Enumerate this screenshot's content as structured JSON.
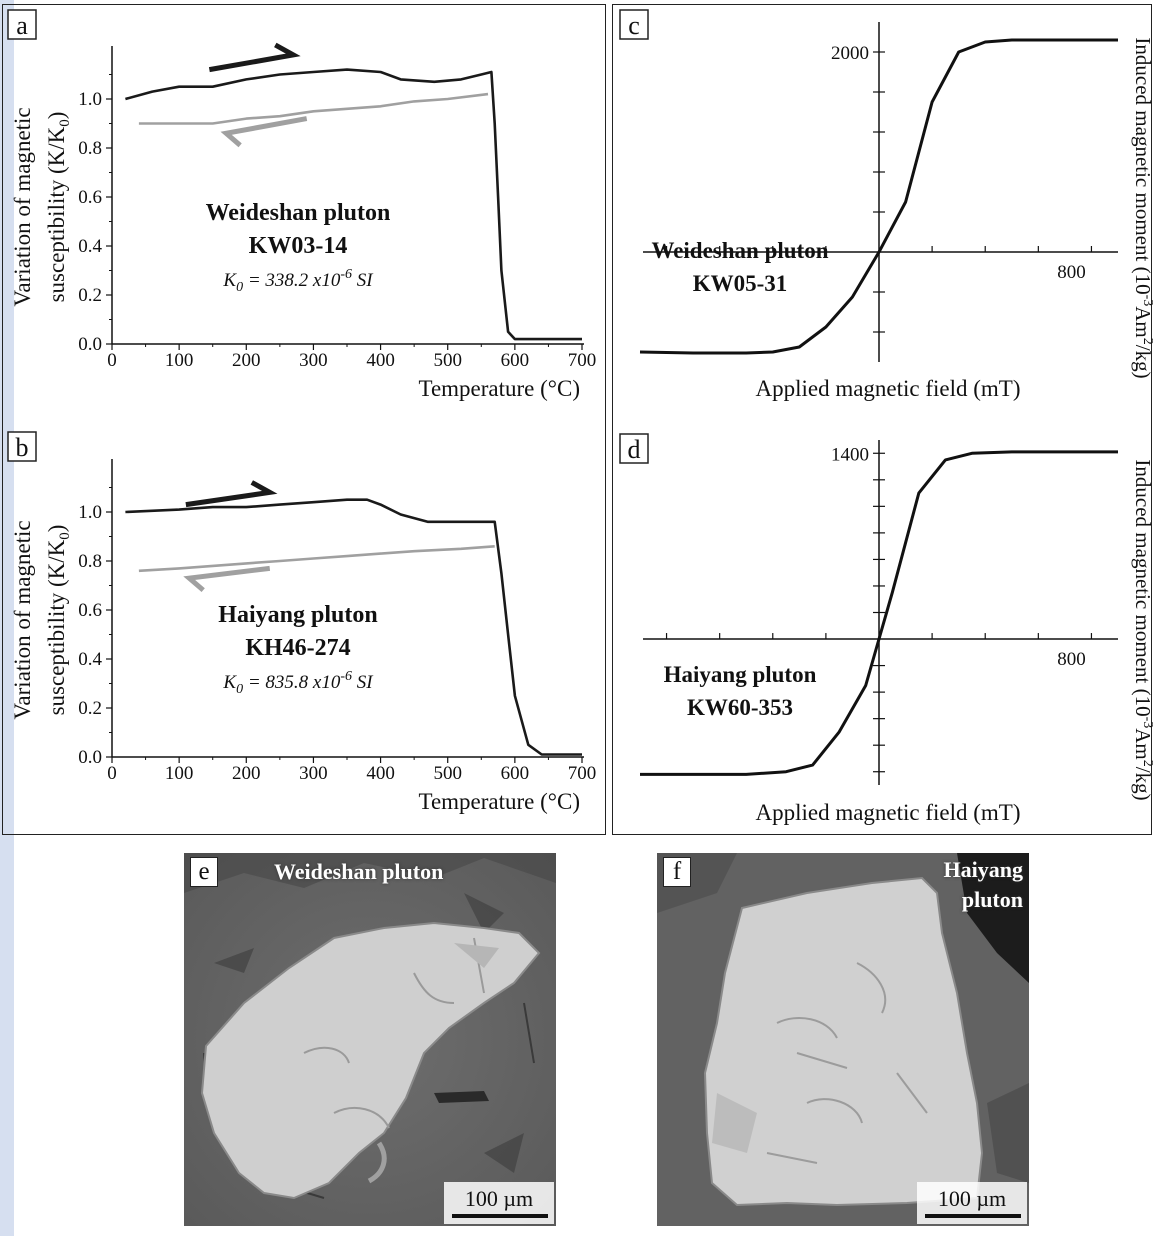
{
  "panels": {
    "a": {
      "letter": "a",
      "title": "Weideshan pluton",
      "sample": "KW03-14",
      "k0": "338.2 x10",
      "k0_exp": "-6",
      "k0_unit": " SI",
      "ylabel1": "Variation of magnetic",
      "ylabel2": "susceptibility (K/K",
      "ylabel_sub": "0",
      "xlabel": "Temperature (°C)"
    },
    "b": {
      "letter": "b",
      "title": "Haiyang pluton",
      "sample": "KH46-274",
      "k0": "835.8 x10",
      "k0_exp": "-6",
      "k0_unit": " SI",
      "ylabel1": "Variation of magnetic",
      "ylabel2": "susceptibility (K/K",
      "ylabel_sub": "0",
      "xlabel": "Temperature (°C)"
    },
    "c": {
      "letter": "c",
      "title": "Weideshan pluton",
      "sample": "KW05-31",
      "xlabel": "Applied magnetic field (mT)",
      "ylabel": "Induced magnetic moment (10",
      "ylabel_exp1": "-3",
      "ylabel_mid": "Am",
      "ylabel_exp2": "2",
      "ylabel_end": "/kg)"
    },
    "d": {
      "letter": "d",
      "title": "Haiyang pluton",
      "sample": "KW60-353",
      "xlabel": "Applied magnetic field (mT)",
      "ylabel": "Induced magnetic moment (10",
      "ylabel_exp1": "-3",
      "ylabel_mid": "Am",
      "ylabel_exp2": "2",
      "ylabel_end": "/kg)"
    },
    "e": {
      "letter": "e",
      "title": "Weideshan pluton",
      "scale": "100 µm"
    },
    "f": {
      "letter": "f",
      "title1": "Haiyang",
      "title2": "pluton",
      "scale": "100 µm"
    }
  },
  "chart_data": [
    {
      "panel": "a",
      "type": "line",
      "xlim": [
        0,
        700
      ],
      "ylim": [
        0,
        1.2
      ],
      "x_ticks": [
        0,
        100,
        200,
        300,
        400,
        500,
        600,
        700
      ],
      "y_ticks": [
        0.0,
        0.2,
        0.4,
        0.6,
        0.8,
        1.0
      ],
      "series": [
        {
          "role": "heating",
          "color": "#1a1a1a",
          "x": [
            20,
            60,
            100,
            150,
            200,
            250,
            300,
            350,
            400,
            430,
            480,
            520,
            550,
            565,
            570,
            575,
            580,
            590,
            600,
            650,
            700
          ],
          "y": [
            1.0,
            1.03,
            1.05,
            1.05,
            1.08,
            1.1,
            1.11,
            1.12,
            1.11,
            1.08,
            1.07,
            1.08,
            1.1,
            1.11,
            0.9,
            0.6,
            0.3,
            0.05,
            0.02,
            0.02,
            0.02
          ]
        },
        {
          "role": "cooling",
          "color": "#a0a0a0",
          "x": [
            560,
            500,
            450,
            400,
            350,
            300,
            250,
            200,
            150,
            100,
            40
          ],
          "y": [
            1.02,
            1.0,
            0.99,
            0.97,
            0.96,
            0.95,
            0.93,
            0.92,
            0.9,
            0.9,
            0.9
          ]
        }
      ]
    },
    {
      "panel": "b",
      "type": "line",
      "xlim": [
        0,
        700
      ],
      "ylim": [
        0,
        1.2
      ],
      "x_ticks": [
        0,
        100,
        200,
        300,
        400,
        500,
        600,
        700
      ],
      "y_ticks": [
        0.0,
        0.2,
        0.4,
        0.6,
        0.8,
        1.0
      ],
      "series": [
        {
          "role": "heating",
          "color": "#1a1a1a",
          "x": [
            20,
            100,
            150,
            200,
            250,
            300,
            350,
            380,
            400,
            430,
            470,
            520,
            560,
            570,
            580,
            590,
            600,
            620,
            640,
            700
          ],
          "y": [
            1.0,
            1.01,
            1.02,
            1.02,
            1.03,
            1.04,
            1.05,
            1.05,
            1.03,
            0.99,
            0.96,
            0.96,
            0.96,
            0.96,
            0.75,
            0.5,
            0.25,
            0.05,
            0.01,
            0.01
          ]
        },
        {
          "role": "cooling",
          "color": "#a0a0a0",
          "x": [
            570,
            520,
            450,
            400,
            350,
            300,
            250,
            200,
            150,
            100,
            40
          ],
          "y": [
            0.86,
            0.85,
            0.84,
            0.83,
            0.82,
            0.81,
            0.8,
            0.79,
            0.78,
            0.77,
            0.76
          ]
        }
      ]
    },
    {
      "panel": "c",
      "type": "line",
      "xlim": [
        -900,
        900
      ],
      "ylim": [
        -1100,
        2300
      ],
      "x_ticks": [
        800
      ],
      "y_ticks": [
        2000
      ],
      "series": [
        {
          "color": "#111111",
          "x": [
            -900,
            -700,
            -500,
            -400,
            -300,
            -200,
            -100,
            0,
            100,
            200,
            300,
            400,
            500,
            700,
            900
          ],
          "y": [
            -1000,
            -1010,
            -1010,
            -1000,
            -950,
            -750,
            -450,
            0,
            500,
            1500,
            2000,
            2100,
            2120,
            2120,
            2120
          ]
        }
      ]
    },
    {
      "panel": "d",
      "type": "line",
      "xlim": [
        -900,
        900
      ],
      "ylim": [
        -1100,
        1500
      ],
      "x_ticks": [
        800
      ],
      "y_ticks": [
        1400
      ],
      "series": [
        {
          "color": "#111111",
          "x": [
            -900,
            -700,
            -500,
            -350,
            -250,
            -150,
            -50,
            0,
            50,
            150,
            250,
            350,
            500,
            700,
            900
          ],
          "y": [
            -1020,
            -1020,
            -1020,
            -1000,
            -950,
            -700,
            -350,
            0,
            350,
            1100,
            1350,
            1400,
            1410,
            1410,
            1410
          ]
        }
      ]
    }
  ]
}
